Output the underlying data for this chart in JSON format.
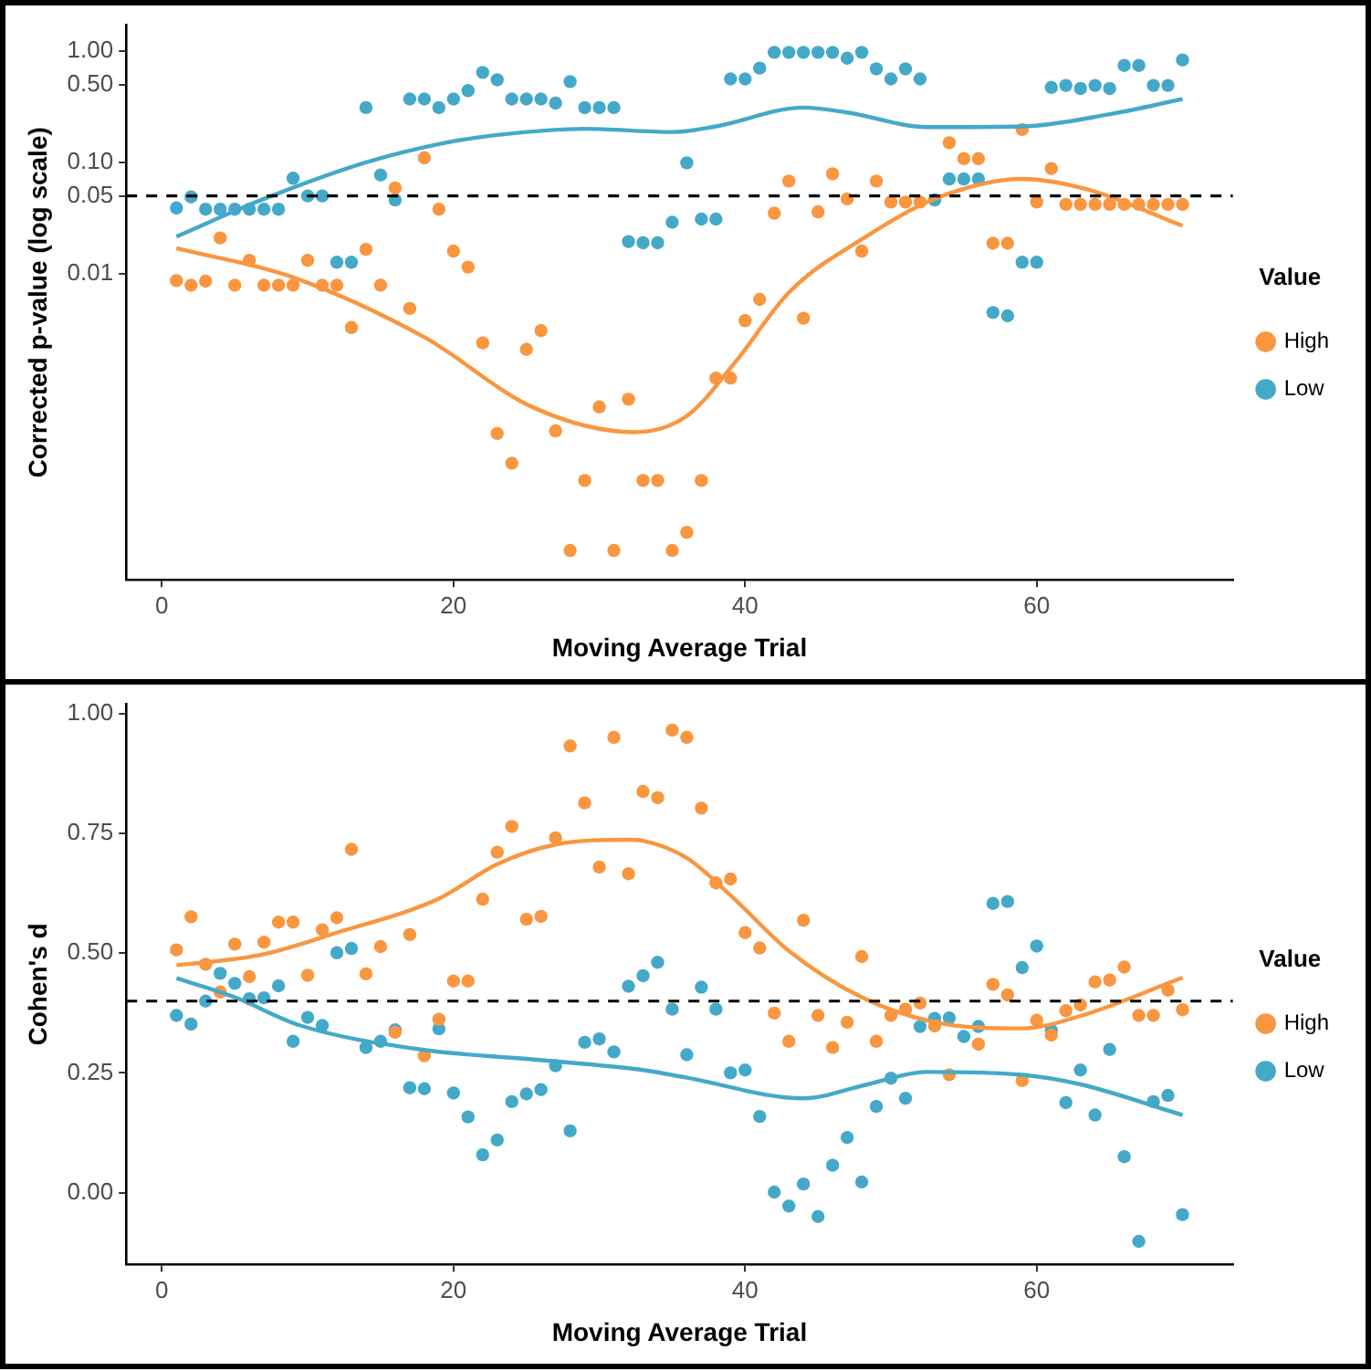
{
  "chart_data": [
    {
      "type": "scatter",
      "xlabel": "Moving Average Trial",
      "ylabel": "Corrected p-value (log scale)",
      "legend_title": "Value",
      "legend": "right",
      "log": "y",
      "x": [
        1,
        2,
        3,
        4,
        5,
        6,
        7,
        8,
        9,
        10,
        11,
        12,
        13,
        14,
        15,
        16,
        17,
        18,
        19,
        20,
        21,
        22,
        23,
        24,
        25,
        26,
        27,
        28,
        29,
        30,
        31,
        32,
        33,
        34,
        35,
        36,
        37,
        38,
        39,
        40,
        41,
        42,
        43,
        44,
        45,
        46,
        47,
        48,
        49,
        50,
        51,
        52,
        53,
        54,
        55,
        56,
        57,
        58,
        59,
        60,
        61,
        62,
        63,
        64,
        65,
        66,
        67,
        68,
        69,
        70
      ],
      "xlim": [
        -2.45,
        73.45
      ],
      "xticks": [
        0,
        20,
        40,
        60
      ],
      "ylim": [
        1.8e-05,
        1.7
      ],
      "yticks": [
        0.01,
        0.05,
        {
          "value": 0.1,
          "label": "0.10"
        },
        {
          "value": 0.5,
          "label": "0.50"
        },
        {
          "value": 1,
          "label": "1.00"
        }
      ],
      "ref_lines": [
        {
          "axis": "y",
          "value": 0.05,
          "color": "#000000",
          "line_style": "dashed"
        }
      ],
      "series": [
        {
          "name": "High",
          "color": "#f9963f",
          "marker": "circle",
          "values": [
            0.0087,
            0.0079,
            0.0086,
            0.021,
            0.0079,
            0.0132,
            0.0079,
            0.0079,
            0.0079,
            0.0132,
            0.0079,
            0.0079,
            0.0033,
            0.0166,
            0.0079,
            0.059,
            0.0049,
            0.11,
            0.038,
            0.016,
            0.0115,
            0.0024,
            0.00037,
            0.0002,
            0.0021,
            0.0031,
            0.00039,
            3.3e-05,
            0.00014,
            0.00064,
            3.3e-05,
            0.00075,
            0.00014,
            0.00014,
            3.3e-05,
            4.8e-05,
            0.00014,
            0.00116,
            0.00116,
            0.0038,
            0.0059,
            0.035,
            0.068,
            0.004,
            0.036,
            0.079,
            0.047,
            0.016,
            0.068,
            0.044,
            0.044,
            0.044,
            null,
            0.15,
            0.108,
            0.108,
            0.0188,
            0.0188,
            0.197,
            0.044,
            0.088,
            0.042,
            0.042,
            0.042,
            0.042,
            0.042,
            0.042,
            0.042,
            0.042,
            0.042
          ]
        },
        {
          "name": "Low",
          "color": "#44a9c9",
          "marker": "circle",
          "values": [
            0.039,
            0.049,
            0.038,
            0.038,
            0.038,
            0.038,
            0.038,
            0.038,
            0.072,
            0.05,
            0.05,
            0.0127,
            0.0127,
            0.31,
            0.077,
            0.046,
            0.37,
            0.37,
            0.31,
            0.37,
            0.44,
            0.64,
            0.55,
            0.37,
            0.37,
            0.37,
            0.34,
            0.53,
            0.31,
            0.31,
            0.31,
            0.0195,
            0.019,
            0.019,
            0.029,
            0.099,
            0.031,
            0.031,
            0.56,
            0.56,
            0.7,
            0.97,
            0.97,
            0.97,
            0.97,
            0.97,
            0.86,
            0.97,
            0.69,
            0.56,
            0.69,
            0.56,
            0.046,
            0.071,
            0.071,
            0.071,
            0.0045,
            0.0042,
            0.0127,
            0.0127,
            0.47,
            0.49,
            0.46,
            0.49,
            0.46,
            0.74,
            0.74,
            0.49,
            0.49,
            0.83
          ]
        },
        {
          "type": "line",
          "color": "#f9963f",
          "marker": "none",
          "x": [
            1,
            9,
            18,
            25.5,
            32.4,
            36,
            39.3,
            43,
            48.4,
            53,
            59,
            63.5,
            70
          ],
          "values": [
            0.017,
            0.0093,
            0.0027,
            0.00063,
            0.00038,
            0.00053,
            0.0016,
            0.0068,
            0.022,
            0.047,
            0.071,
            0.057,
            0.027
          ]
        },
        {
          "type": "line",
          "color": "#44a9c9",
          "marker": "none",
          "x": [
            1,
            7,
            14,
            19,
            23,
            29,
            35,
            38,
            44,
            47,
            52.5,
            59,
            65,
            70
          ],
          "values": [
            0.0216,
            0.047,
            0.1,
            0.146,
            0.176,
            0.2,
            0.187,
            0.21,
            0.31,
            0.28,
            0.207,
            0.21,
            0.27,
            0.37
          ]
        }
      ]
    },
    {
      "type": "scatter",
      "xlabel": "Moving Average Trial",
      "ylabel": "Cohen's d",
      "legend_title": "Value",
      "legend": "right",
      "x": [
        1,
        2,
        3,
        4,
        5,
        6,
        7,
        8,
        9,
        10,
        11,
        12,
        13,
        14,
        15,
        16,
        17,
        18,
        19,
        20,
        21,
        22,
        23,
        24,
        25,
        26,
        27,
        28,
        29,
        30,
        31,
        32,
        33,
        34,
        35,
        36,
        37,
        38,
        39,
        40,
        41,
        42,
        43,
        44,
        45,
        46,
        47,
        48,
        49,
        50,
        51,
        52,
        53,
        54,
        55,
        56,
        57,
        58,
        59,
        60,
        61,
        62,
        63,
        64,
        65,
        66,
        67,
        68,
        69,
        70
      ],
      "xlim": [
        -2.45,
        73.45
      ],
      "xticks": [
        0,
        20,
        40,
        60
      ],
      "ylim": [
        -0.15,
        1.02
      ],
      "yticks": [
        {
          "value": 0,
          "label": "0.00"
        },
        0.25,
        {
          "value": 0.5,
          "label": "0.50"
        },
        0.75,
        {
          "value": 1,
          "label": "1.00"
        }
      ],
      "ref_lines": [
        {
          "axis": "y",
          "value": 0.4,
          "color": "#000000",
          "line_style": "dashed"
        }
      ],
      "series": [
        {
          "name": "High",
          "color": "#f9963f",
          "marker": "circle",
          "values": [
            0.507,
            0.576,
            0.477,
            0.419,
            0.519,
            0.451,
            0.523,
            0.565,
            0.565,
            0.454,
            0.549,
            0.574,
            0.717,
            0.457,
            0.514,
            0.335,
            0.539,
            0.286,
            0.362,
            0.442,
            0.442,
            0.613,
            0.711,
            0.765,
            0.571,
            0.577,
            0.741,
            0.933,
            0.814,
            0.68,
            0.951,
            0.666,
            0.838,
            0.825,
            0.966,
            0.951,
            0.803,
            0.647,
            0.655,
            0.543,
            0.511,
            0.375,
            0.316,
            0.569,
            0.37,
            0.303,
            0.356,
            0.493,
            0.316,
            0.37,
            0.383,
            0.396,
            0.348,
            0.246,
            null,
            0.31,
            0.435,
            0.413,
            0.234,
            0.36,
            0.329,
            0.38,
            0.392,
            0.44,
            0.444,
            0.471,
            0.37,
            0.37,
            0.423,
            0.382
          ]
        },
        {
          "name": "Low",
          "color": "#44a9c9",
          "marker": "circle",
          "values": [
            0.37,
            0.352,
            0.4,
            0.458,
            0.437,
            0.405,
            0.407,
            0.432,
            0.316,
            0.366,
            0.349,
            0.501,
            0.51,
            0.303,
            0.316,
            0.34,
            0.219,
            0.217,
            0.342,
            0.208,
            0.158,
            0.079,
            0.11,
            0.19,
            0.206,
            0.215,
            0.265,
            0.129,
            0.314,
            0.321,
            0.294,
            0.431,
            0.453,
            0.481,
            0.383,
            0.288,
            0.429,
            0.383,
            0.25,
            0.256,
            0.159,
            0.001,
            -0.028,
            0.018,
            -0.05,
            0.057,
            0.115,
            0.022,
            0.18,
            0.239,
            0.197,
            0.347,
            0.364,
            0.365,
            0.326,
            0.347,
            0.604,
            0.608,
            0.47,
            0.515,
            0.339,
            0.188,
            0.256,
            0.162,
            0.299,
            0.075,
            -0.102,
            0.19,
            0.203,
            -0.046
          ]
        },
        {
          "type": "line",
          "color": "#f9963f",
          "marker": "none",
          "x": [
            1,
            3,
            7,
            12,
            19,
            23,
            27,
            32,
            33,
            36,
            39,
            43,
            48,
            53,
            59,
            63,
            70
          ],
          "values": [
            0.475,
            0.481,
            0.498,
            0.543,
            0.614,
            0.686,
            0.727,
            0.737,
            0.735,
            0.699,
            0.621,
            0.505,
            0.408,
            0.356,
            0.343,
            0.369,
            0.449
          ]
        },
        {
          "type": "line",
          "color": "#44a9c9",
          "marker": "none",
          "x": [
            1,
            5,
            9.5,
            18,
            25.5,
            33,
            36,
            44,
            48.4,
            52.4,
            59,
            63,
            70
          ],
          "values": [
            0.448,
            0.408,
            0.349,
            0.298,
            0.278,
            0.256,
            0.24,
            0.197,
            0.226,
            0.252,
            0.246,
            0.226,
            0.162
          ]
        }
      ]
    }
  ]
}
